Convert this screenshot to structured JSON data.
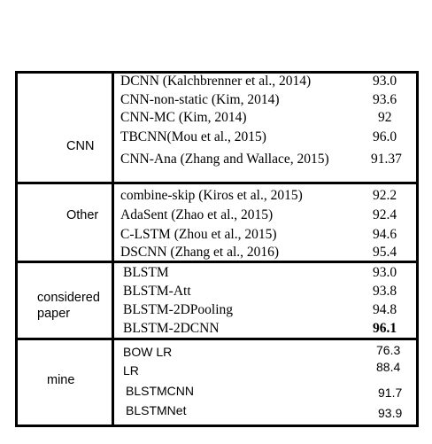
{
  "groups": {
    "cnn": {
      "label": "CNN",
      "rows": [
        {
          "method": "DCNN (Kalchbrenner et al., 2014)",
          "score": "93.0"
        },
        {
          "method": "CNN-non-static (Kim, 2014)",
          "score": "93.6"
        },
        {
          "method": "CNN-MC (Kim, 2014)",
          "score": "92"
        },
        {
          "method": "TBCNN(Mou et al., 2015)",
          "score": "96.0"
        },
        {
          "method": "CNN-Ana (Zhang and Wallace, 2015)",
          "score": "91.37"
        }
      ]
    },
    "other": {
      "label": "Other",
      "rows": [
        {
          "method": "combine-skip (Kiros et al., 2015)",
          "score": "92.2"
        },
        {
          "method": "AdaSent (Zhao et al., 2015)",
          "score": "92.4"
        },
        {
          "method": "C-LSTM (Zhou et al., 2015)",
          "score": "94.6"
        },
        {
          "method": "DSCNN (Zhang et al., 2016)",
          "score": "95.4"
        }
      ]
    },
    "considered": {
      "label_line1": "considered",
      "label_line2": "paper",
      "rows": [
        {
          "method": "BLSTM",
          "score": "93.0"
        },
        {
          "method": "BLSTM-Att",
          "score": "93.8"
        },
        {
          "method": "BLSTM-2DPooling",
          "score": "94.8"
        },
        {
          "method": "BLSTM-2DCNN",
          "score": "96.1"
        }
      ]
    },
    "mine": {
      "label": "mine",
      "rows": [
        {
          "method": "BOW LR",
          "score": "76.3"
        },
        {
          "method": "LR",
          "score": "88.4"
        },
        {
          "method": "BLSTMCNN",
          "score": "91.7"
        },
        {
          "method": "BLSTMNet",
          "score": "93.9"
        }
      ]
    }
  }
}
